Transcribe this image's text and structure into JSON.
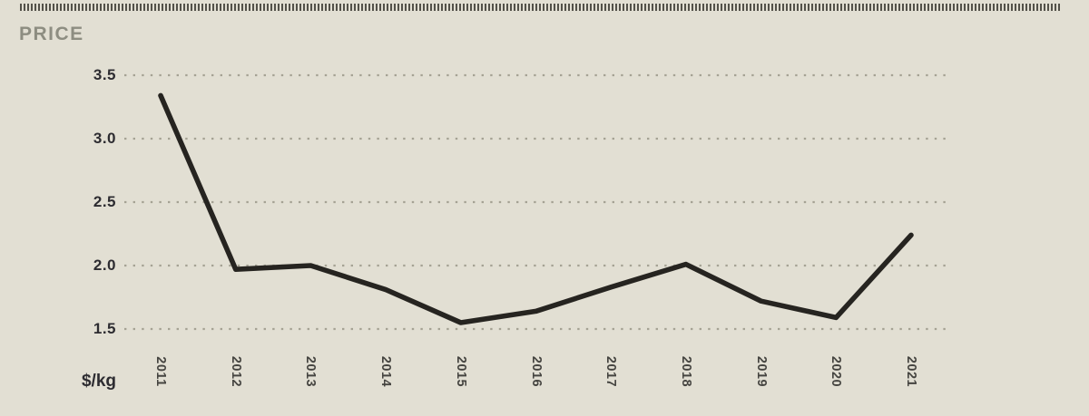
{
  "page": {
    "title": "PRICE",
    "unit_label": "$/kg",
    "colors": {
      "background": "#e2dfd3",
      "top_border_dashes": "#54524a",
      "title_text": "#8d8d81",
      "axis_value_text": "#2d2c31",
      "year_label_text": "#454440",
      "line": "#262420",
      "gridline_dots": "#a5a294"
    }
  },
  "chart_data": {
    "type": "line",
    "title": "PRICE",
    "xlabel": "",
    "ylabel": "$/kg",
    "categories": [
      "2011",
      "2012",
      "2013",
      "2014",
      "2015",
      "2016",
      "2017",
      "2018",
      "2019",
      "2020",
      "2021"
    ],
    "values": [
      3.34,
      1.97,
      2.0,
      1.81,
      1.55,
      1.64,
      1.83,
      2.01,
      1.72,
      1.59,
      2.24
    ],
    "yticks": [
      3.5,
      3.0,
      2.5,
      2.0,
      1.5
    ],
    "ytick_labels": [
      "3.5",
      "3.0",
      "2.5",
      "2.0",
      "1.5"
    ],
    "ylim": [
      1.5,
      3.5
    ],
    "grid": "horizontal-dotted",
    "legend": "none"
  }
}
